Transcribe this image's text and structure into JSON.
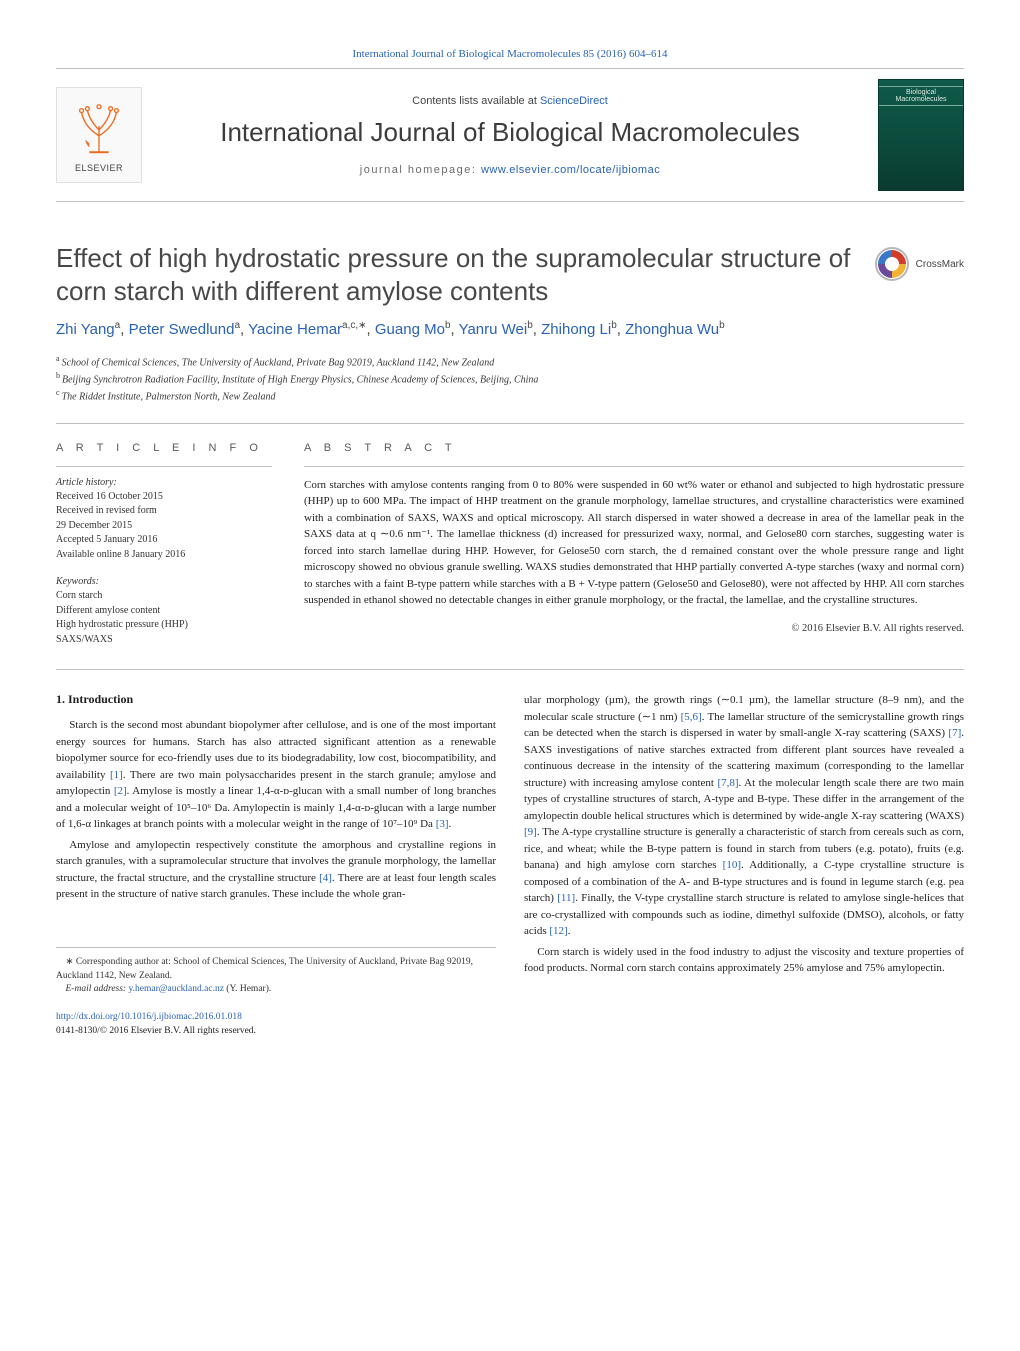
{
  "top_citation": "International Journal of Biological Macromolecules 85 (2016) 604–614",
  "masthead": {
    "contents_prefix": "Contents lists available at ",
    "contents_link": "ScienceDirect",
    "journal": "International Journal of Biological Macromolecules",
    "homepage_prefix": "journal homepage: ",
    "homepage_link": "www.elsevier.com/locate/ijbiomac",
    "publisher_logo_label": "ELSEVIER",
    "cover_label": "Biological Macromolecules"
  },
  "crossmark": {
    "label": "CrossMark"
  },
  "title": "Effect of high hydrostatic pressure on the supramolecular structure of corn starch with different amylose contents",
  "authors_html": "Zhi Yang<sup>a</sup>, Peter Swedlund<sup>a</sup>, Yacine Hemar<sup>a,c,∗</sup>, Guang Mo<sup>b</sup>, Yanru Wei<sup>b</sup>, Zhihong Li<sup>b</sup>, Zhonghua Wu<sup>b</sup>",
  "affiliations": [
    "School of Chemical Sciences, The University of Auckland, Private Bag 92019, Auckland 1142, New Zealand",
    "Beijing Synchrotron Radiation Facility, Institute of High Energy Physics, Chinese Academy of Sciences, Beijing, China",
    "The Riddet Institute, Palmerston North, New Zealand"
  ],
  "affil_markers": [
    "a",
    "b",
    "c"
  ],
  "article_info_label": "A R T I C L E   I N F O",
  "abstract_label": "A B S T R A C T",
  "history": {
    "head": "Article history:",
    "lines": [
      "Received 16 October 2015",
      "Received in revised form",
      "29 December 2015",
      "Accepted 5 January 2016",
      "Available online 8 January 2016"
    ]
  },
  "keywords": {
    "head": "Keywords:",
    "lines": [
      "Corn starch",
      "Different amylose content",
      "High hydrostatic pressure (HHP)",
      "SAXS/WAXS"
    ]
  },
  "abstract": "Corn starches with amylose contents ranging from 0 to 80% were suspended in 60 wt% water or ethanol and subjected to high hydrostatic pressure (HHP) up to 600 MPa. The impact of HHP treatment on the granule morphology, lamellae structures, and crystalline characteristics were examined with a combination of SAXS, WAXS and optical microscopy. All starch dispersed in water showed a decrease in area of the lamellar peak in the SAXS data at q ∼0.6 nm⁻¹. The lamellae thickness (d) increased for pressurized waxy, normal, and Gelose80 corn starches, suggesting water is forced into starch lamellae during HHP. However, for Gelose50 corn starch, the d remained constant over the whole pressure range and light microscopy showed no obvious granule swelling. WAXS studies demonstrated that HHP partially converted A-type starches (waxy and normal corn) to starches with a faint B-type pattern while starches with a B + V-type pattern (Gelose50 and Gelose80), were not affected by HHP. All corn starches suspended in ethanol showed no detectable changes in either granule morphology, or the fractal, the lamellae, and the crystalline structures.",
  "copyright": "© 2016 Elsevier B.V. All rights reserved.",
  "sections": {
    "intro_head": "1.  Introduction",
    "col1_p1": "Starch is the second most abundant biopolymer after cellulose, and is one of the most important energy sources for humans. Starch has also attracted significant attention as a renewable biopolymer source for eco-friendly uses due to its biodegradability, low cost, biocompatibility, and availability [1]. There are two main polysaccharides present in the starch granule; amylose and amylopectin [2]. Amylose is mostly a linear 1,4-α-ᴅ-glucan with a small number of long branches and a molecular weight of 10⁵–10⁶ Da. Amylopectin is mainly 1,4-α-ᴅ-glucan with a large number of 1,6-α linkages at branch points with a molecular weight in the range of 10⁷–10⁹ Da [3].",
    "col1_p2": "Amylose and amylopectin respectively constitute the amorphous and crystalline regions in starch granules, with a supramolecular structure that involves the granule morphology, the lamellar structure, the fractal structure, and the crystalline structure [4]. There are at least four length scales present in the structure of native starch granules. These include the whole gran-",
    "col2_p1": "ular morphology (µm), the growth rings (∼0.1 µm), the lamellar structure (8–9 nm), and the molecular scale structure (∼1 nm) [5,6]. The lamellar structure of the semicrystalline growth rings can be detected when the starch is dispersed in water by small-angle X-ray scattering (SAXS) [7]. SAXS investigations of native starches extracted from different plant sources have revealed a continuous decrease in the intensity of the scattering maximum (corresponding to the lamellar structure) with increasing amylose content [7,8]. At the molecular length scale there are two main types of crystalline structures of starch, A-type and B-type. These differ in the arrangement of the amylopectin double helical structures which is determined by wide-angle X-ray scattering (WAXS) [9]. The A-type crystalline structure is generally a characteristic of starch from cereals such as corn, rice, and wheat; while the B-type pattern is found in starch from tubers (e.g. potato), fruits (e.g. banana) and high amylose corn starches [10]. Additionally, a C-type crystalline structure is composed of a combination of the A- and B-type structures and is found in legume starch (e.g. pea starch) [11]. Finally, the V-type crystalline starch structure is related to amylose single-helices that are co-crystallized with compounds such as iodine, dimethyl sulfoxide (DMSO), alcohols, or fatty acids [12].",
    "col2_p2": "Corn starch is widely used in the food industry to adjust the viscosity and texture properties of food products. Normal corn starch contains approximately 25% amylose and 75% amylopectin."
  },
  "footnotes": {
    "corresponding": "Corresponding author at: School of Chemical Sciences, The University of Auckland, Private Bag 92019, Auckland 1142, New Zealand.",
    "email_label": "E-mail address:",
    "email": "y.hemar@auckland.ac.nz",
    "email_person": "(Y. Hemar)."
  },
  "doi": {
    "url": "http://dx.doi.org/10.1016/j.ijbiomac.2016.01.018",
    "line2": "0141-8130/© 2016 Elsevier B.V. All rights reserved."
  },
  "ref_indices": {
    "c1p1": [
      "[1]",
      "[2]",
      "[3]"
    ],
    "c1p2": [
      "[4]"
    ],
    "c2p1": [
      "[5,6]",
      "[7]",
      "[7,8]",
      "[9]",
      "[10]",
      "[11]",
      "[12]"
    ]
  },
  "colors": {
    "link": "#2a62b5",
    "rule": "#bfbfbf",
    "elsevier_orange": "#ef6b1e",
    "cover_green": "#0f5a4a",
    "crossmark_red": "#d13c2b",
    "crossmark_yellow": "#f2b233",
    "crossmark_blue": "#3a77c7",
    "crossmark_purple": "#6b4a9c"
  }
}
